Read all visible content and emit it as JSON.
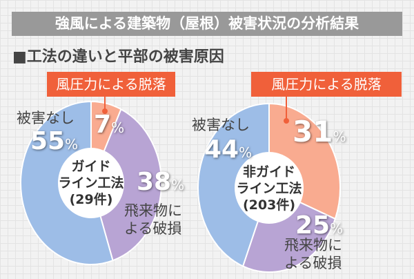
{
  "title": "強風による建築物（屋根）被害状況の分析結果",
  "subtitle": "■工法の違いと平部の被害原因",
  "colors": {
    "wind": "#f9ab90",
    "debris": "#b8a4d4",
    "none": "#9dbde7",
    "tag": "#f0603a"
  },
  "chart_data": [
    {
      "type": "pie",
      "donut": true,
      "center_label": [
        "ガイド",
        "ライン工法",
        "(29件)"
      ],
      "categories": [
        "風圧力による脱落",
        "飛来物による破損",
        "被害なし"
      ],
      "values": [
        7,
        38,
        55
      ],
      "unit": "%",
      "labels": [
        "7",
        "38",
        "55"
      ],
      "category_lines": [
        [
          "風圧力による脱落"
        ],
        [
          "飛来物に",
          "よる破損"
        ],
        [
          "被害なし"
        ]
      ]
    },
    {
      "type": "pie",
      "donut": true,
      "center_label": [
        "非ガイド",
        "ライン工法",
        "(203件)"
      ],
      "categories": [
        "風圧力による脱落",
        "飛来物による破損",
        "被害なし"
      ],
      "values": [
        31,
        25,
        44
      ],
      "unit": "%",
      "labels": [
        "31",
        "25",
        "44"
      ],
      "category_lines": [
        [
          "風圧力による脱落"
        ],
        [
          "飛来物に",
          "よる破損"
        ],
        [
          "被害なし"
        ]
      ]
    }
  ]
}
